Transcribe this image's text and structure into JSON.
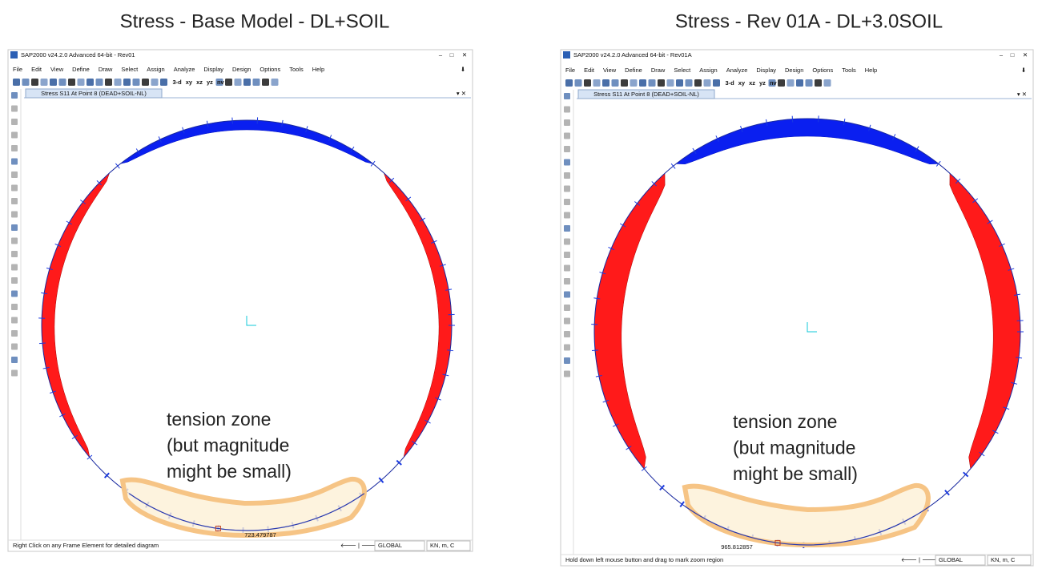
{
  "panels": [
    {
      "heading": "Stress - Base Model - DL+SOIL",
      "window_title": "SAP2000 v24.2.0 Advanced 64-bit - Rev01",
      "menu": [
        "File",
        "Edit",
        "View",
        "Define",
        "Draw",
        "Select",
        "Assign",
        "Analyze",
        "Display",
        "Design",
        "Options",
        "Tools",
        "Help"
      ],
      "view_buttons": [
        "3-d",
        "xy",
        "xz",
        "yz",
        "nv"
      ],
      "tab": "Stress S11 At Point 8 (DEAD+SOIL-NL)",
      "annotation": [
        "tension zone",
        "(but magnitude",
        "might be small)"
      ],
      "value_label": "723.479787",
      "status": "Right Click on any Frame Element for detailed diagram",
      "coord_system": "GLOBAL",
      "units": "KN, m, C"
    },
    {
      "heading": "Stress - Rev 01A - DL+3.0SOIL",
      "window_title": "SAP2000 v24.2.0 Advanced 64-bit - Rev01A",
      "menu": [
        "File",
        "Edit",
        "View",
        "Define",
        "Draw",
        "Select",
        "Assign",
        "Analyze",
        "Display",
        "Design",
        "Options",
        "Tools",
        "Help"
      ],
      "view_buttons": [
        "3-d",
        "xy",
        "xz",
        "yz",
        "nv"
      ],
      "tab": "Stress S11 At Point 8 (DEAD+SOIL-NL)",
      "annotation": [
        "tension zone",
        "(but magnitude",
        "might be small)"
      ],
      "value_label": "965.812857",
      "status": "Hold down left mouse button and drag to mark zoom region",
      "coord_system": "GLOBAL",
      "units": "KN, m, C"
    }
  ]
}
